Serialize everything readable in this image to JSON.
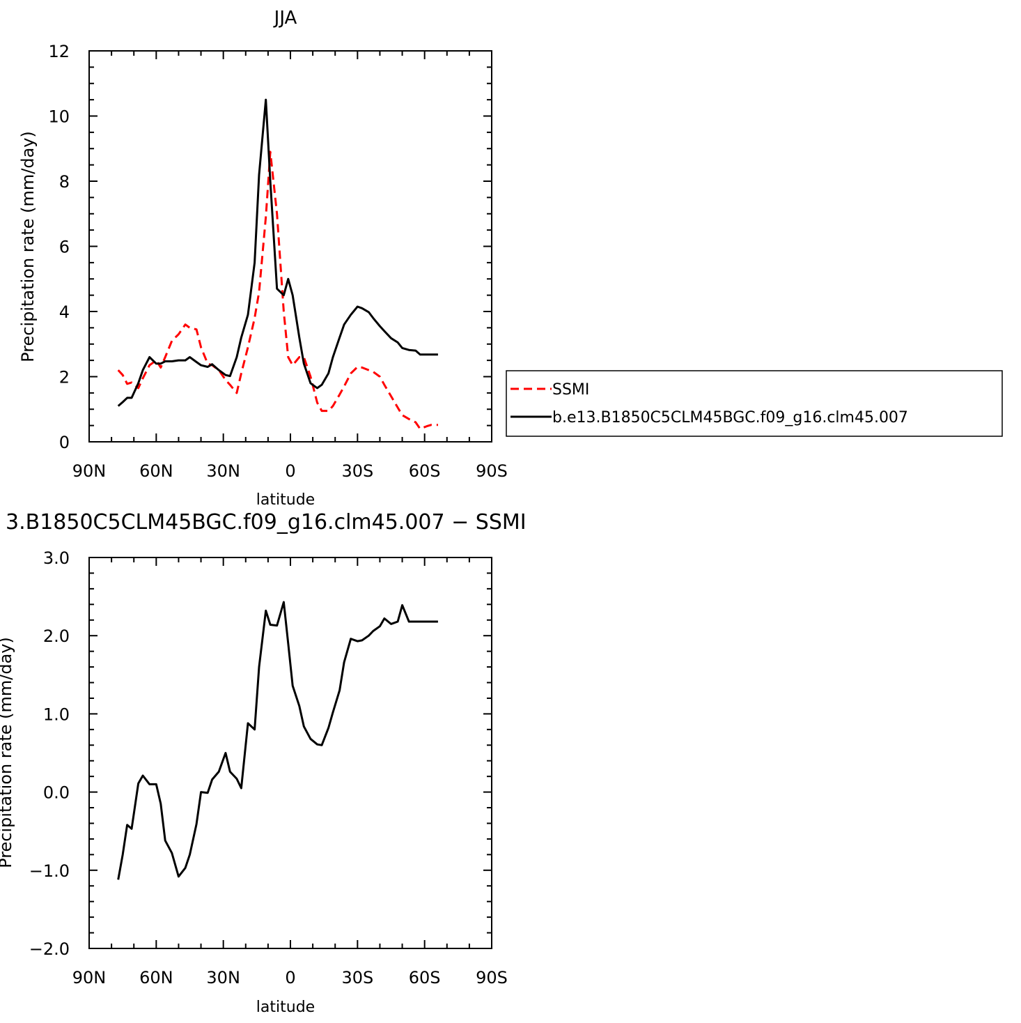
{
  "chart_data": [
    {
      "type": "line",
      "title": "JJA",
      "xlabel": "latitude",
      "ylabel": "Precipitation rate (mm/day)",
      "xlim": [
        90,
        -90
      ],
      "ylim": [
        0,
        12
      ],
      "x_ticks": [
        "90N",
        "60N",
        "30N",
        "0",
        "30S",
        "60S",
        "90S"
      ],
      "y_ticks": [
        "0",
        "2",
        "4",
        "6",
        "8",
        "10",
        "12"
      ],
      "legend": {
        "position": "right",
        "entries": [
          "SSMI",
          "b.e13.B1850C5CLM45BGC.f09_g16.clm45.007"
        ]
      },
      "series": [
        {
          "name": "SSMI",
          "color": "#ff0000",
          "dash": "dashed",
          "x": [
            77,
            75,
            73,
            71,
            68,
            66,
            63,
            60,
            58,
            56,
            53,
            50,
            47,
            45,
            42,
            40,
            37,
            35,
            32,
            29,
            27,
            24,
            22,
            19,
            16,
            14,
            11,
            9,
            6,
            3,
            1,
            -1,
            -4,
            -6,
            -9,
            -12,
            -14,
            -17,
            -19,
            -22,
            -24,
            -27,
            -30,
            -32,
            -35,
            -37,
            -40,
            -42,
            -45,
            -48,
            -50,
            -53,
            -56,
            -58,
            -61,
            -63,
            -66
          ],
          "values": [
            2.2,
            2.05,
            1.78,
            1.82,
            1.65,
            1.95,
            2.35,
            2.5,
            2.28,
            2.6,
            3.1,
            3.3,
            3.6,
            3.5,
            3.45,
            2.9,
            2.4,
            2.35,
            2.2,
            1.9,
            1.75,
            1.5,
            2.1,
            2.9,
            3.8,
            4.6,
            6.9,
            8.9,
            7.0,
            4.0,
            2.6,
            2.35,
            2.6,
            2.6,
            2.0,
            1.2,
            0.95,
            0.95,
            1.1,
            1.45,
            1.7,
            2.1,
            2.3,
            2.28,
            2.2,
            2.15,
            2.0,
            1.75,
            1.4,
            1.05,
            0.82,
            0.7,
            0.6,
            0.4,
            0.48,
            0.52,
            0.52
          ]
        },
        {
          "name": "b.e13.B1850C5CLM45BGC.f09_g16.clm45.007",
          "color": "#000000",
          "dash": "solid",
          "x": [
            77,
            75,
            73,
            71,
            68,
            66,
            63,
            60,
            58,
            56,
            53,
            50,
            47,
            45,
            42,
            40,
            37,
            35,
            32,
            29,
            27,
            24,
            22,
            19,
            16,
            14,
            11,
            9,
            6,
            3,
            1,
            -1,
            -4,
            -6,
            -9,
            -12,
            -14,
            -17,
            -19,
            -22,
            -24,
            -27,
            -30,
            -32,
            -35,
            -37,
            -40,
            -42,
            -45,
            -48,
            -50,
            -53,
            -56,
            -58,
            -61,
            -63,
            -66
          ],
          "values": [
            1.1,
            1.22,
            1.35,
            1.35,
            1.8,
            2.2,
            2.6,
            2.4,
            2.4,
            2.47,
            2.47,
            2.5,
            2.5,
            2.6,
            2.45,
            2.35,
            2.3,
            2.38,
            2.2,
            2.05,
            2.02,
            2.6,
            3.2,
            3.9,
            5.5,
            8.2,
            10.5,
            8.0,
            4.7,
            4.5,
            5.0,
            4.5,
            3.2,
            2.4,
            1.8,
            1.65,
            1.75,
            2.1,
            2.6,
            3.2,
            3.6,
            3.9,
            4.15,
            4.1,
            3.98,
            3.8,
            3.55,
            3.4,
            3.18,
            3.05,
            2.88,
            2.82,
            2.8,
            2.68,
            2.68,
            2.68,
            2.68
          ]
        }
      ]
    },
    {
      "type": "line",
      "title": "3.B1850C5CLM45BGC.f09_g16.clm45.007 − SSMI",
      "xlabel": "latitude",
      "ylabel": "Precipitation rate (mm/day)",
      "xlim": [
        90,
        -90
      ],
      "ylim": [
        -2.0,
        3.0
      ],
      "x_ticks": [
        "90N",
        "60N",
        "30N",
        "0",
        "30S",
        "60S",
        "90S"
      ],
      "y_ticks": [
        "−2.0",
        "−1.0",
        "0.0",
        "1.0",
        "2.0",
        "3.0"
      ],
      "series": [
        {
          "color": "#000000",
          "dash": "solid",
          "x": [
            77,
            75,
            73,
            71,
            68,
            66,
            63,
            60,
            58,
            56,
            53,
            50,
            47,
            45,
            42,
            40,
            37,
            35,
            32,
            29,
            27,
            24,
            22,
            19,
            16,
            14,
            11,
            9,
            6,
            3,
            1,
            -1,
            -4,
            -6,
            -9,
            -12,
            -14,
            -17,
            -19,
            -22,
            -24,
            -27,
            -30,
            -32,
            -35,
            -37,
            -40,
            -42,
            -45,
            -48,
            -50,
            -53,
            -56,
            -58,
            -61,
            -63,
            -66
          ],
          "values": [
            -1.12,
            -0.8,
            -0.42,
            -0.47,
            0.11,
            0.21,
            0.1,
            0.1,
            -0.15,
            -0.62,
            -0.78,
            -1.08,
            -0.97,
            -0.8,
            -0.41,
            0.0,
            -0.01,
            0.16,
            0.26,
            0.5,
            0.26,
            0.17,
            0.05,
            0.88,
            0.8,
            1.6,
            2.32,
            2.14,
            2.13,
            2.43,
            1.9,
            1.36,
            1.1,
            0.84,
            0.68,
            0.61,
            0.6,
            0.82,
            1.02,
            1.3,
            1.66,
            1.96,
            1.93,
            1.94,
            2.0,
            2.06,
            2.12,
            2.22,
            2.15,
            2.18,
            2.39,
            2.18,
            2.18,
            2.18,
            2.18,
            2.18,
            2.18
          ]
        }
      ]
    }
  ]
}
